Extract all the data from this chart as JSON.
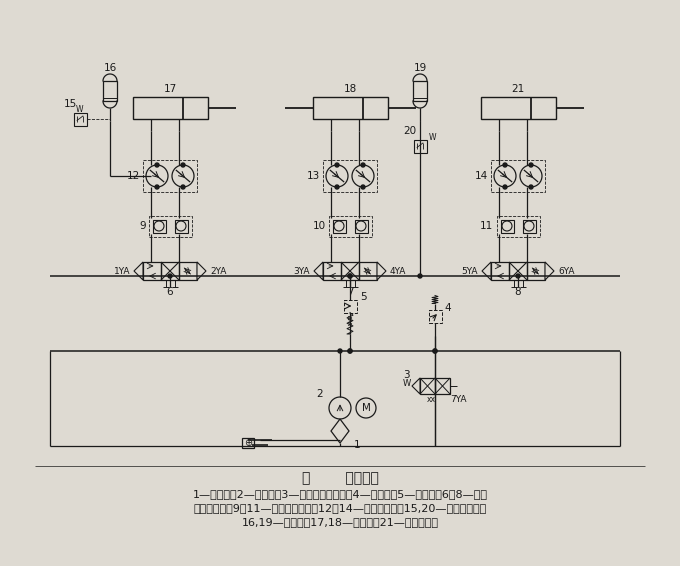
{
  "title": "图        液压原理",
  "caption_line1": "1—过滤器；2—柱塞泵；3—二位四通电磁阀；4—溢流阀；5—减压阀；6～8—三位",
  "caption_line2": "四通电磁阀；9～11—双液控单向阀；12～14—单向节流阀；15,20—压力继电器；",
  "caption_line3": "16,19—蓄能器；17,18—夹紧缸；21—弯曲成形缸",
  "bg_color": "#dedad2",
  "line_color": "#1a1a1a",
  "lw": 0.9
}
